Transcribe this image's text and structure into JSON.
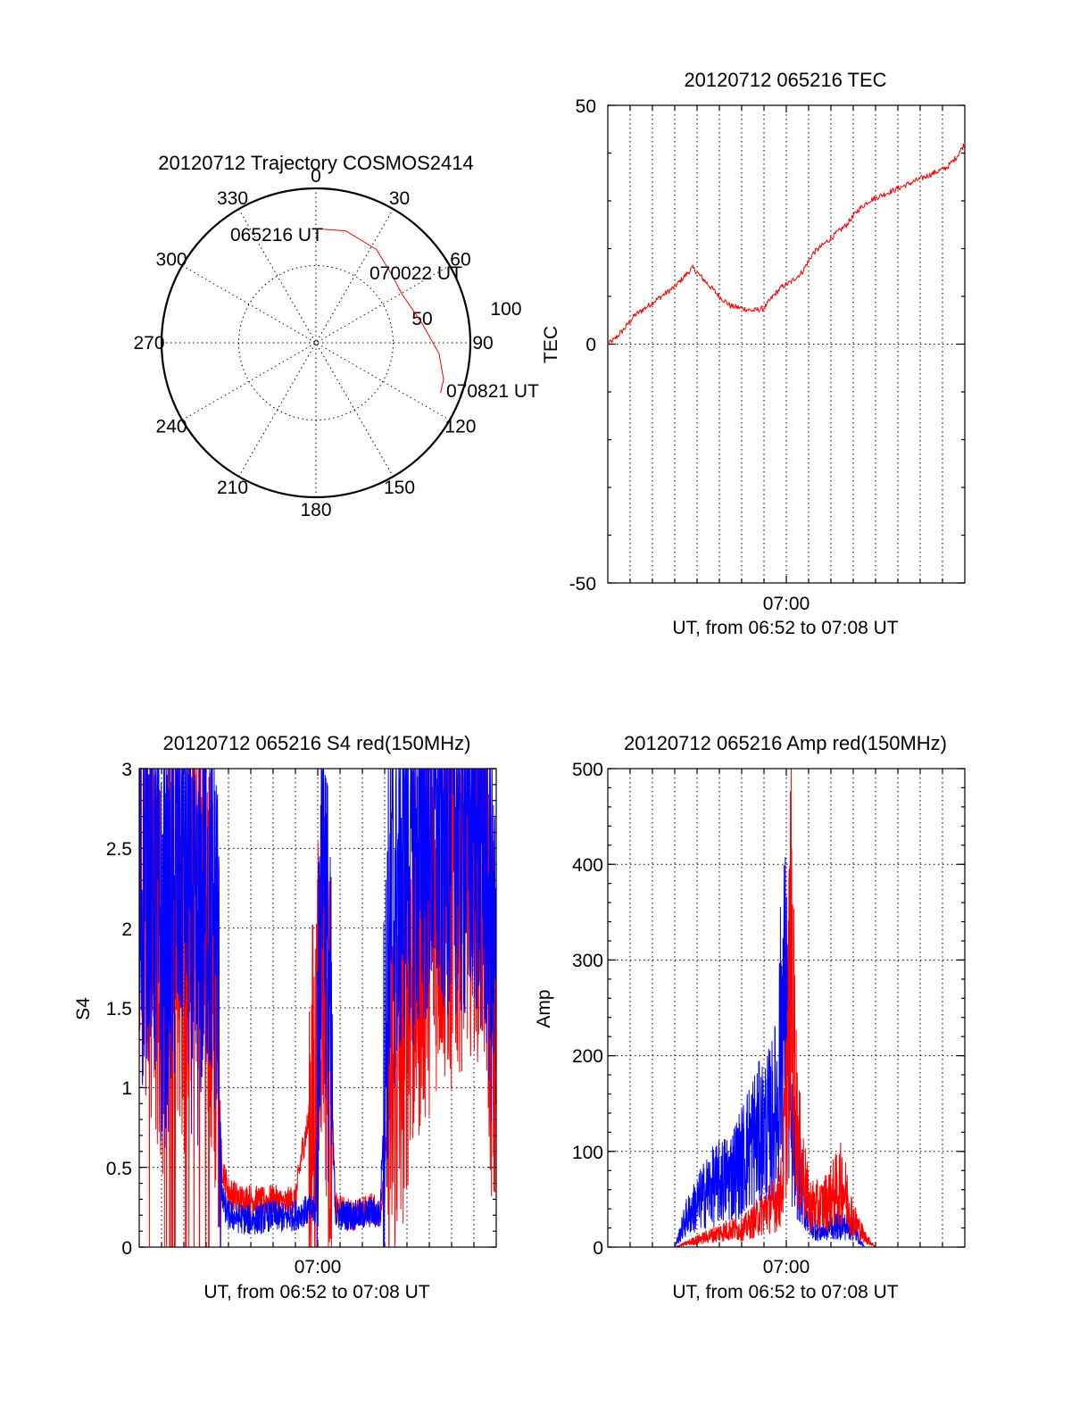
{
  "colors": {
    "red": "#ff0000",
    "blue": "#0000ff",
    "axis": "#000000"
  },
  "chart_data": [
    {
      "type": "polar",
      "title": "20120712 Trajectory COSMOS2414",
      "azimuth_labels": [
        "0",
        "30",
        "60",
        "90",
        "120",
        "150",
        "180",
        "210",
        "240",
        "270",
        "300",
        "330"
      ],
      "radial_labels": [
        "50",
        "100"
      ],
      "rlim": [
        0,
        100
      ],
      "grid": true,
      "annotations": [
        "065216 UT",
        "070022 UT",
        "070821 UT"
      ],
      "series": [
        {
          "color": "red",
          "points": [
            {
              "az": 359,
              "r": 74
            },
            {
              "az": 15,
              "r": 75
            },
            {
              "az": 33,
              "r": 72
            },
            {
              "az": 48,
              "r": 66
            },
            {
              "az": 60,
              "r": 64
            },
            {
              "az": 80,
              "r": 70
            },
            {
              "az": 95,
              "r": 80
            },
            {
              "az": 106,
              "r": 86
            },
            {
              "az": 112,
              "r": 87
            }
          ]
        }
      ]
    },
    {
      "type": "line",
      "title": "20120712 065216 TEC",
      "xlabel": "UT, from 06:52 to 07:08 UT",
      "ylabel": "TEC",
      "xtick_labels": [
        "07:00"
      ],
      "ytick_labels": [
        "50",
        "0",
        "-50"
      ],
      "ylim": [
        -50,
        50
      ],
      "grid": true,
      "series": [
        {
          "color": "red",
          "x": [
            0,
            0.3,
            0.7,
            1.2,
            1.8,
            2.4,
            3.0,
            3.4,
            3.8,
            4.2,
            4.6,
            5.0,
            5.5,
            6.0,
            6.5,
            7.0,
            7.4,
            7.8,
            8.2,
            8.7,
            9.2,
            9.7,
            10.2,
            10.7,
            11.2,
            11.7,
            12.2,
            12.7,
            13.2,
            13.7,
            14.2,
            14.7,
            15.2,
            15.6,
            16.0
          ],
          "y": [
            0,
            1,
            3,
            6,
            8,
            10,
            12,
            14,
            16,
            14,
            12,
            10,
            8,
            7.5,
            7,
            7.5,
            10,
            12,
            13,
            15,
            19,
            21,
            23,
            25,
            28,
            30,
            31,
            32,
            33,
            34,
            35,
            36,
            37,
            39,
            42
          ]
        }
      ]
    },
    {
      "type": "line",
      "title": "20120712 065216 S4 red(150MHz)",
      "xlabel": "UT, from 06:52 to 07:08 UT",
      "ylabel": "S4",
      "xtick_labels": [
        "07:00"
      ],
      "ytick_labels": [
        "0",
        "0.5",
        "1",
        "1.5",
        "2",
        "2.5",
        "3"
      ],
      "ylim": [
        0,
        3
      ],
      "grid": true,
      "series": [
        {
          "color": "red",
          "x": [
            0,
            0.5,
            1.0,
            1.5,
            2.0,
            2.5,
            3.0,
            3.5,
            3.7,
            4.0,
            4.5,
            5.0,
            5.5,
            6.0,
            6.5,
            7.0,
            7.3,
            7.6,
            7.9,
            8.2,
            8.5,
            8.8,
            9.2,
            9.6,
            10.0,
            10.4,
            10.8,
            11.2,
            11.6,
            12.0,
            12.5,
            13.0,
            13.5,
            14.0,
            14.5,
            15.0,
            15.5,
            16.0
          ],
          "y": [
            2.3,
            2.1,
            1.6,
            2.3,
            1.8,
            2.4,
            2.0,
            1.4,
            0.5,
            0.35,
            0.3,
            0.3,
            0.28,
            0.3,
            0.27,
            0.3,
            0.6,
            0.8,
            0.9,
            2.0,
            1.2,
            0.25,
            0.22,
            0.2,
            0.22,
            0.25,
            0.2,
            0.9,
            1.1,
            1.6,
            1.9,
            2.1,
            2.3,
            2.2,
            2.4,
            2.5,
            2.3,
            1.0
          ]
        },
        {
          "color": "blue",
          "x": [
            0,
            0.5,
            1.0,
            1.5,
            2.0,
            2.5,
            3.0,
            3.5,
            3.7,
            4.0,
            4.5,
            5.0,
            5.5,
            6.0,
            6.5,
            7.0,
            7.3,
            7.6,
            7.9,
            8.2,
            8.5,
            8.8,
            9.2,
            9.6,
            10.0,
            10.4,
            10.8,
            11.2,
            11.6,
            12.0,
            12.5,
            13.0,
            13.5,
            14.0,
            14.5,
            15.0,
            15.5,
            16.0
          ],
          "y": [
            2.1,
            2.5,
            1.8,
            2.1,
            2.6,
            1.7,
            2.3,
            2.0,
            0.3,
            0.2,
            0.18,
            0.17,
            0.18,
            0.2,
            0.18,
            0.2,
            0.22,
            0.23,
            0.22,
            2.9,
            1.5,
            0.2,
            0.2,
            0.2,
            0.2,
            0.22,
            0.2,
            2.0,
            2.3,
            2.6,
            2.5,
            2.7,
            2.6,
            2.8,
            2.6,
            2.7,
            2.5,
            1.6
          ]
        }
      ]
    },
    {
      "type": "line",
      "title": "20120712 065216 Amp red(150MHz)",
      "xlabel": "UT, from 06:52 to 07:08 UT",
      "ylabel": "Amp",
      "xtick_labels": [
        "07:00"
      ],
      "ytick_labels": [
        "0",
        "100",
        "200",
        "300",
        "400",
        "500"
      ],
      "ylim": [
        0,
        500
      ],
      "grid": true,
      "series": [
        {
          "color": "red",
          "x": [
            0,
            1,
            2,
            3,
            3.5,
            4.0,
            4.5,
            5.0,
            5.5,
            6.0,
            6.5,
            7.0,
            7.5,
            7.8,
            8.0,
            8.2,
            8.5,
            9.0,
            9.5,
            10.0,
            10.5,
            11.0,
            11.5,
            12.0,
            13.0,
            14.0,
            15.0,
            16.0
          ],
          "y": [
            0,
            0,
            0,
            0,
            5,
            10,
            15,
            20,
            25,
            25,
            35,
            50,
            60,
            80,
            200,
            420,
            150,
            60,
            55,
            70,
            90,
            40,
            15,
            0,
            0,
            0,
            0,
            0
          ]
        },
        {
          "color": "blue",
          "x": [
            0,
            1,
            2,
            3,
            3.5,
            4.0,
            4.5,
            5.0,
            5.5,
            6.0,
            6.5,
            7.0,
            7.3,
            7.6,
            7.8,
            8.0,
            8.2,
            8.5,
            9.0,
            9.5,
            10.0,
            10.5,
            11.0,
            11.5,
            12.0,
            13.0,
            14.0,
            15.0,
            16.0
          ],
          "y": [
            0,
            0,
            0,
            0,
            40,
            60,
            80,
            90,
            100,
            120,
            150,
            160,
            170,
            200,
            330,
            340,
            150,
            110,
            40,
            20,
            30,
            30,
            25,
            0,
            0,
            0,
            0,
            0,
            0
          ]
        }
      ]
    }
  ]
}
